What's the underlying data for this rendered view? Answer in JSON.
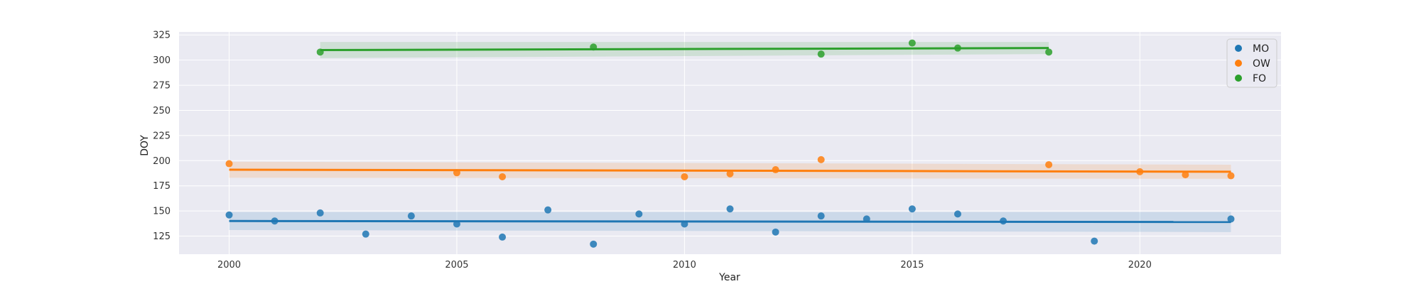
{
  "chart_data": {
    "type": "scatter",
    "title": "",
    "xlabel": "Year",
    "ylabel": "DOY",
    "xlim": [
      1998.9,
      2023.1
    ],
    "ylim": [
      107,
      328
    ],
    "xticks": [
      2000,
      2005,
      2010,
      2015,
      2020
    ],
    "yticks": [
      125,
      150,
      175,
      200,
      225,
      250,
      275,
      300,
      325
    ],
    "grid": true,
    "legend_position": "top-right",
    "series": [
      {
        "name": "MO",
        "color": "#1f77b4",
        "points": [
          [
            2000,
            146
          ],
          [
            2001,
            140
          ],
          [
            2002,
            148
          ],
          [
            2003,
            127
          ],
          [
            2004,
            145
          ],
          [
            2005,
            137
          ],
          [
            2006,
            124
          ],
          [
            2007,
            151
          ],
          [
            2008,
            117
          ],
          [
            2009,
            147
          ],
          [
            2010,
            137
          ],
          [
            2011,
            152
          ],
          [
            2012,
            129
          ],
          [
            2013,
            145
          ],
          [
            2014,
            142
          ],
          [
            2015,
            152
          ],
          [
            2016,
            147
          ],
          [
            2017,
            140
          ],
          [
            2019,
            120
          ],
          [
            2022,
            142
          ]
        ],
        "trend": [
          [
            2000,
            140
          ],
          [
            2022,
            139
          ]
        ],
        "band_halfwidth": [
          9,
          10
        ]
      },
      {
        "name": "OW",
        "color": "#ff7f0e",
        "points": [
          [
            2000,
            197
          ],
          [
            2005,
            188
          ],
          [
            2006,
            184
          ],
          [
            2010,
            184
          ],
          [
            2011,
            187
          ],
          [
            2012,
            191
          ],
          [
            2013,
            201
          ],
          [
            2018,
            196
          ],
          [
            2020,
            189
          ],
          [
            2021,
            186
          ],
          [
            2022,
            185
          ]
        ],
        "trend": [
          [
            2000,
            191
          ],
          [
            2022,
            189
          ]
        ],
        "band_halfwidth": [
          8,
          7
        ]
      },
      {
        "name": "FO",
        "color": "#2ca02c",
        "points": [
          [
            2002,
            308
          ],
          [
            2008,
            313
          ],
          [
            2013,
            306
          ],
          [
            2015,
            317
          ],
          [
            2016,
            312
          ],
          [
            2018,
            308
          ]
        ],
        "trend": [
          [
            2002,
            310
          ],
          [
            2018,
            312
          ]
        ],
        "band_halfwidth": [
          8,
          6
        ]
      }
    ]
  }
}
